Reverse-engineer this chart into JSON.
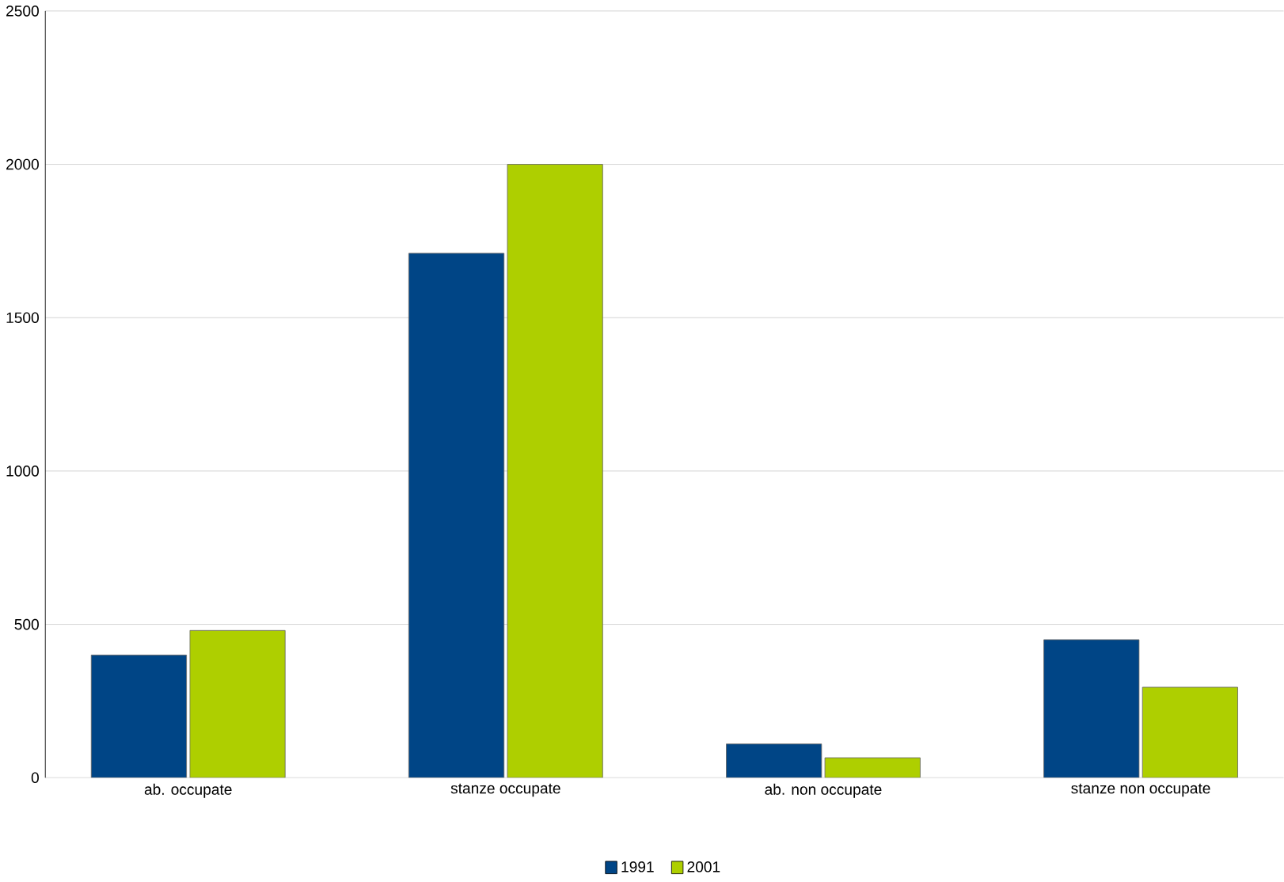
{
  "chart_data": {
    "type": "bar",
    "categories": [
      "ab. occupate",
      "stanze occupate",
      "ab. non occupate",
      "stanze non occupate"
    ],
    "series": [
      {
        "name": "1991",
        "color": "#004586",
        "values": [
          400,
          1710,
          110,
          450
        ]
      },
      {
        "name": "2001",
        "color": "#aecf00",
        "values": [
          480,
          2000,
          65,
          295
        ]
      }
    ],
    "ylim": [
      0,
      2500
    ],
    "yticks": [
      0,
      500,
      1000,
      1500,
      2000,
      2500
    ],
    "grid": "y",
    "legend": "bottom"
  }
}
